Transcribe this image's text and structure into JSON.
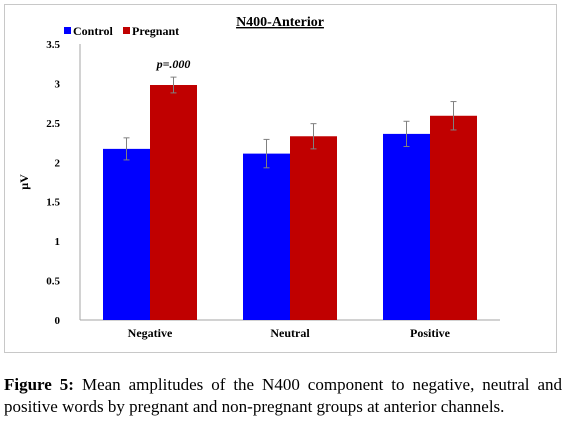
{
  "figure": {
    "caption_label": "Figure 5:",
    "caption_text": "Mean amplitudes of the N400 component to negative, neutral and positive words by pregnant and non-pregnant groups at anterior channels."
  },
  "chart_data": {
    "type": "bar",
    "title": "N400-Anterior",
    "xlabel": "",
    "ylabel": "µV",
    "categories": [
      "Negative",
      "Neutral",
      "Positive"
    ],
    "ylim": [
      0,
      3.5
    ],
    "yticks": [
      "0",
      "0.5",
      "1",
      "1.5",
      "2",
      "2.5",
      "3",
      "3.5"
    ],
    "grid": false,
    "legend_position": "top-left",
    "series": [
      {
        "name": "Control",
        "color": "#0000ff",
        "values": [
          2.17,
          2.11,
          2.36
        ],
        "errors": [
          0.14,
          0.18,
          0.16
        ]
      },
      {
        "name": "Pregnant",
        "color": "#c00000",
        "values": [
          2.98,
          2.33,
          2.59
        ],
        "errors": [
          0.1,
          0.16,
          0.18
        ]
      }
    ],
    "annotations": [
      {
        "text": "p=.000",
        "category": "Negative",
        "series": "Pregnant"
      }
    ]
  }
}
